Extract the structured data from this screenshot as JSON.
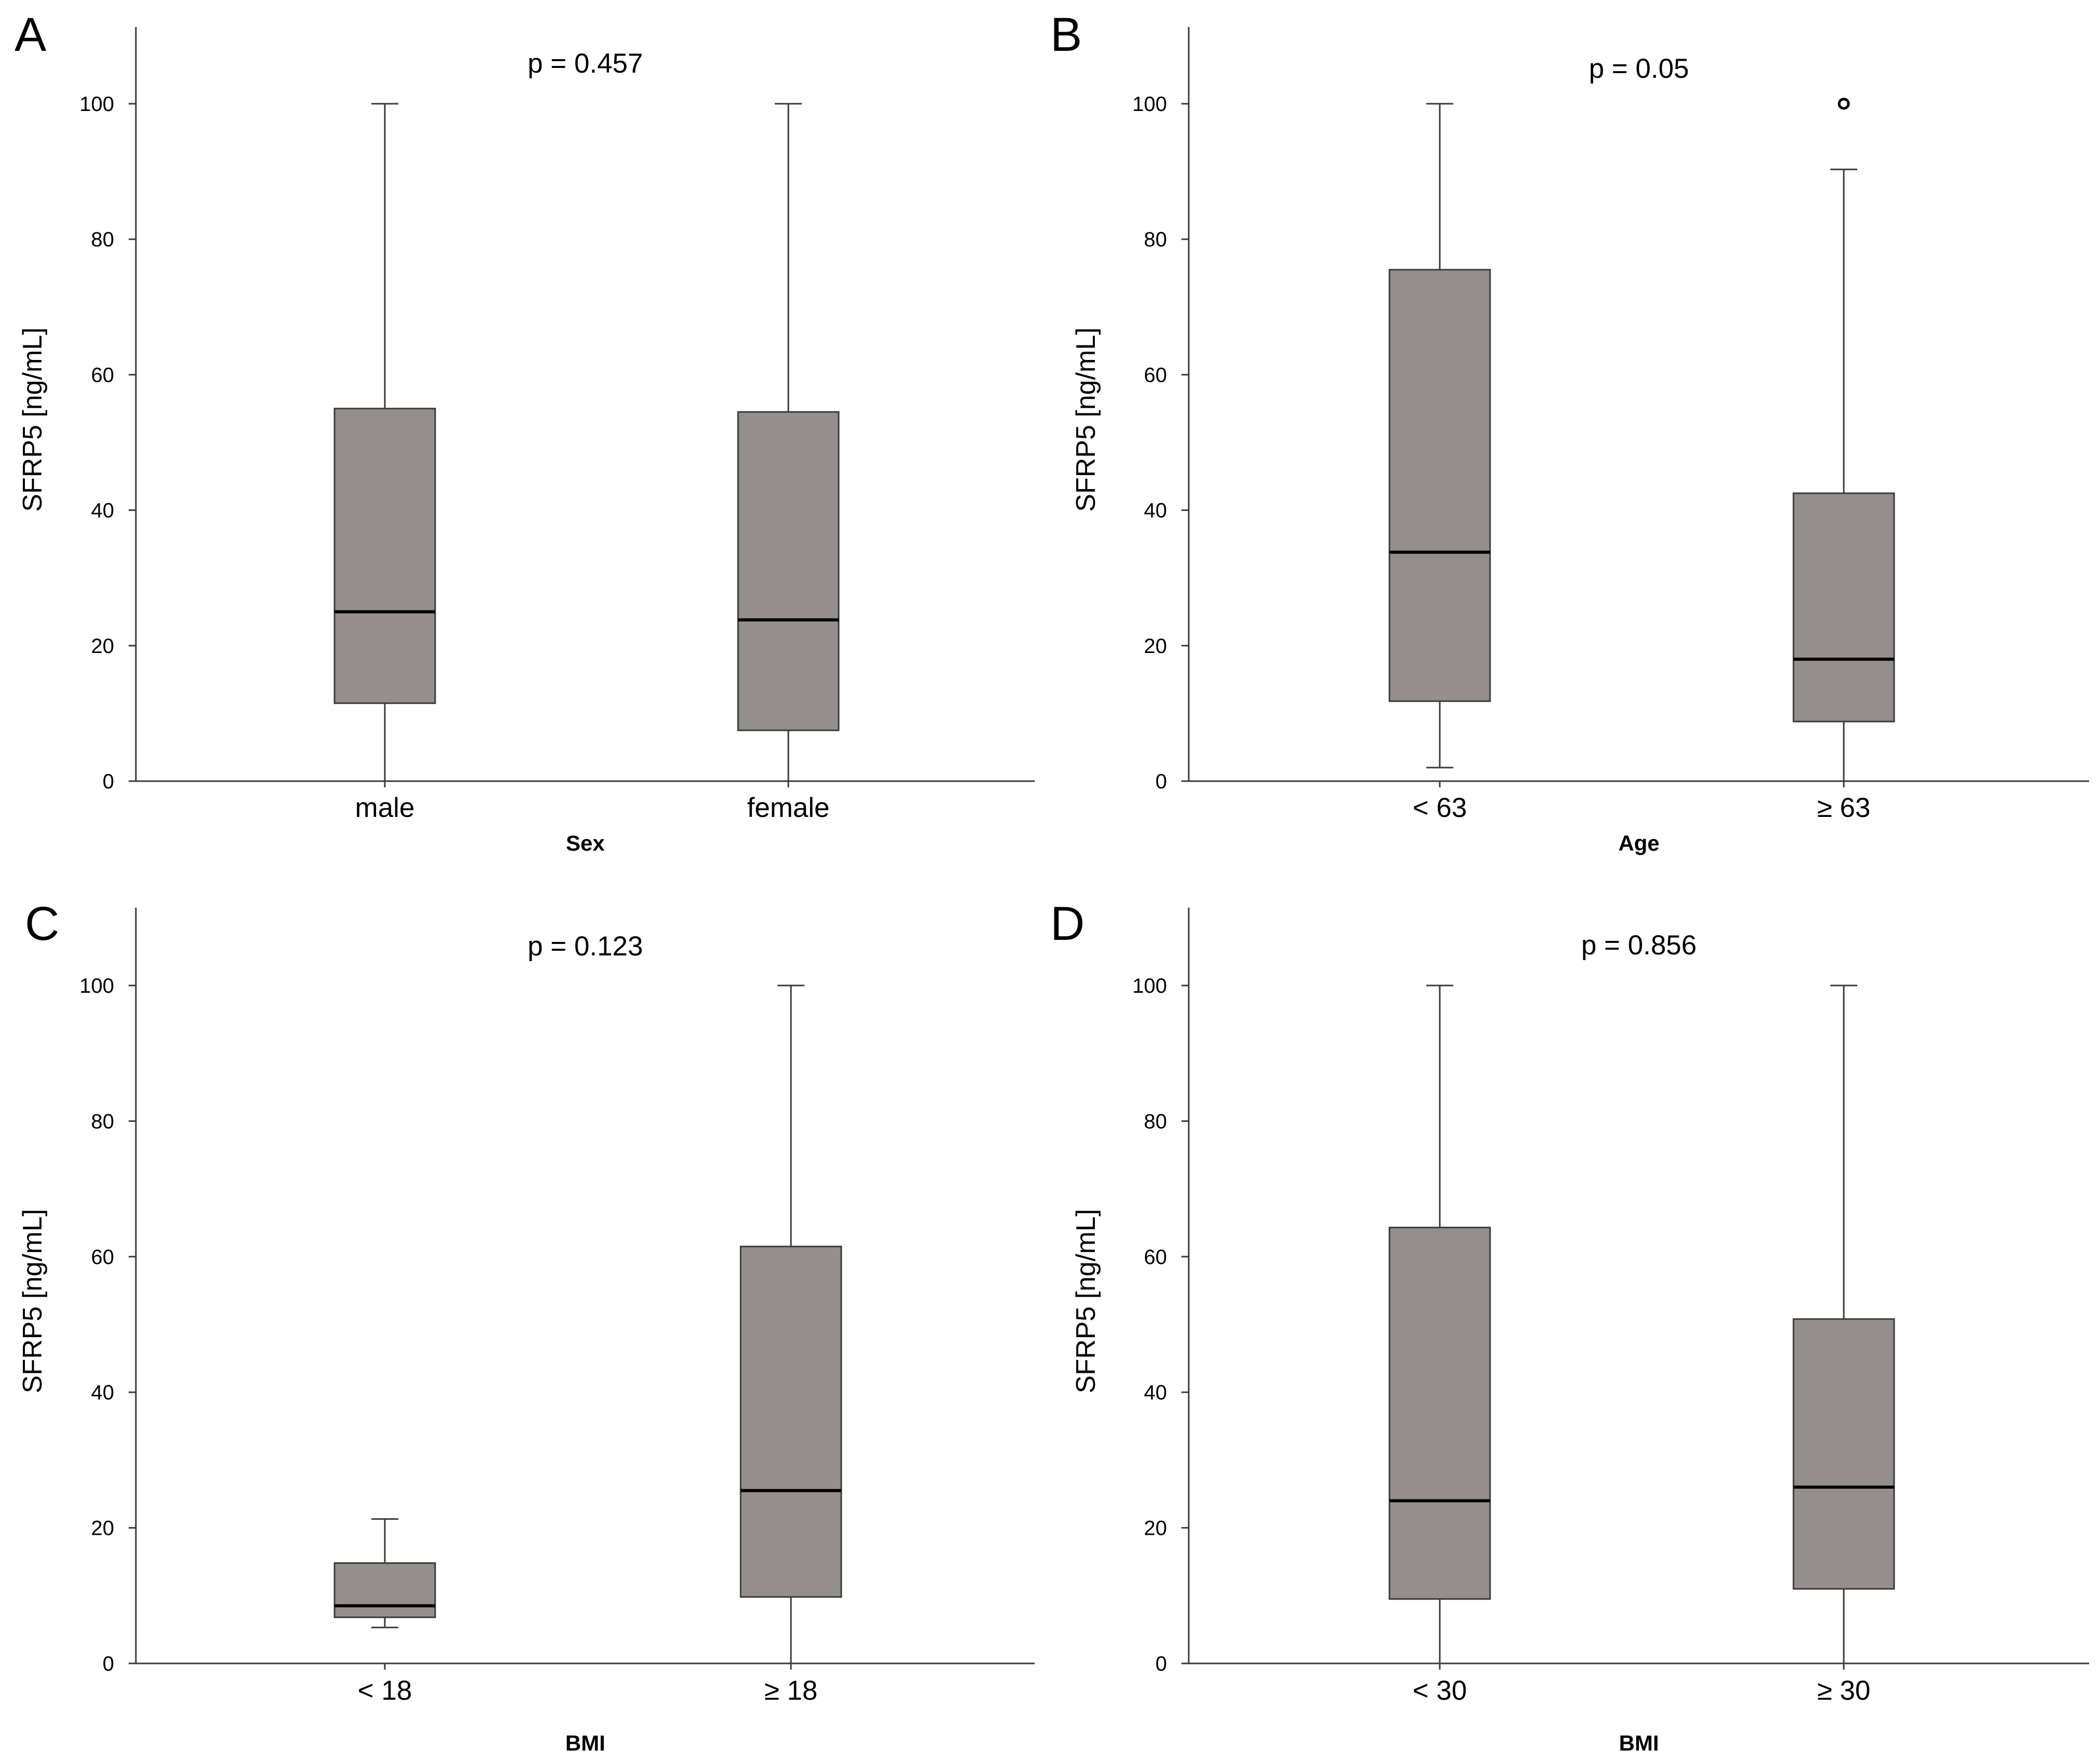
{
  "chart_data": [
    {
      "type": "boxplot",
      "panel_label": "A",
      "title": "p = 0.457",
      "xlabel": "Sex",
      "ylabel": "SFRP5 [ng/mL]",
      "ylim": [
        0,
        110
      ],
      "yticks": [
        "0",
        "20",
        "40",
        "60",
        "80",
        "100"
      ],
      "categories": [
        "male",
        "female"
      ],
      "boxes": [
        {
          "min": 0,
          "q1": 11.5,
          "median": 25,
          "q3": 55,
          "max": 100,
          "outliers": []
        },
        {
          "min": 0,
          "q1": 7.5,
          "median": 23.8,
          "q3": 54.5,
          "max": 100,
          "outliers": []
        }
      ]
    },
    {
      "type": "boxplot",
      "panel_label": "B",
      "title": "p = 0.05",
      "xlabel": "Age",
      "ylabel": "SFRP5 [ng/mL]",
      "ylim": [
        0,
        110
      ],
      "yticks": [
        "0",
        "20",
        "40",
        "60",
        "80",
        "100"
      ],
      "categories": [
        "< 63",
        "≥ 63"
      ],
      "boxes": [
        {
          "min": 2,
          "q1": 11.8,
          "median": 33.8,
          "q3": 75.5,
          "max": 100,
          "outliers": []
        },
        {
          "min": 0,
          "q1": 8.8,
          "median": 18,
          "q3": 42.5,
          "max": 90.3,
          "outliers": [
            100
          ]
        }
      ]
    },
    {
      "type": "boxplot",
      "panel_label": "C",
      "title": "p = 0.123",
      "xlabel": "BMI",
      "ylabel": "SFRP5 [ng/mL]",
      "ylim": [
        0,
        110
      ],
      "yticks": [
        "0",
        "20",
        "40",
        "60",
        "80",
        "100"
      ],
      "categories": [
        "< 18",
        "≥ 18"
      ],
      "boxes": [
        {
          "min": 5.3,
          "q1": 6.8,
          "median": 8.5,
          "q3": 14.8,
          "max": 21.3,
          "outliers": []
        },
        {
          "min": 0,
          "q1": 9.8,
          "median": 25.5,
          "q3": 61.5,
          "max": 100,
          "outliers": []
        }
      ]
    },
    {
      "type": "boxplot",
      "panel_label": "D",
      "title": "p = 0.856",
      "xlabel": "BMI",
      "ylabel": "SFRP5 [ng/mL]",
      "ylim": [
        0,
        110
      ],
      "yticks": [
        "0",
        "20",
        "40",
        "60",
        "80",
        "100"
      ],
      "categories": [
        "< 30",
        "≥ 30"
      ],
      "boxes": [
        {
          "min": 0,
          "q1": 9.5,
          "median": 24,
          "q3": 64.3,
          "max": 100,
          "outliers": []
        },
        {
          "min": 0,
          "q1": 11,
          "median": 26,
          "q3": 50.8,
          "max": 100,
          "outliers": []
        }
      ]
    }
  ],
  "colors": {
    "box_fill": "#948f8d",
    "box_edge": "#3a3a3a",
    "median": "#000000",
    "axis": "#3a3a3a"
  }
}
